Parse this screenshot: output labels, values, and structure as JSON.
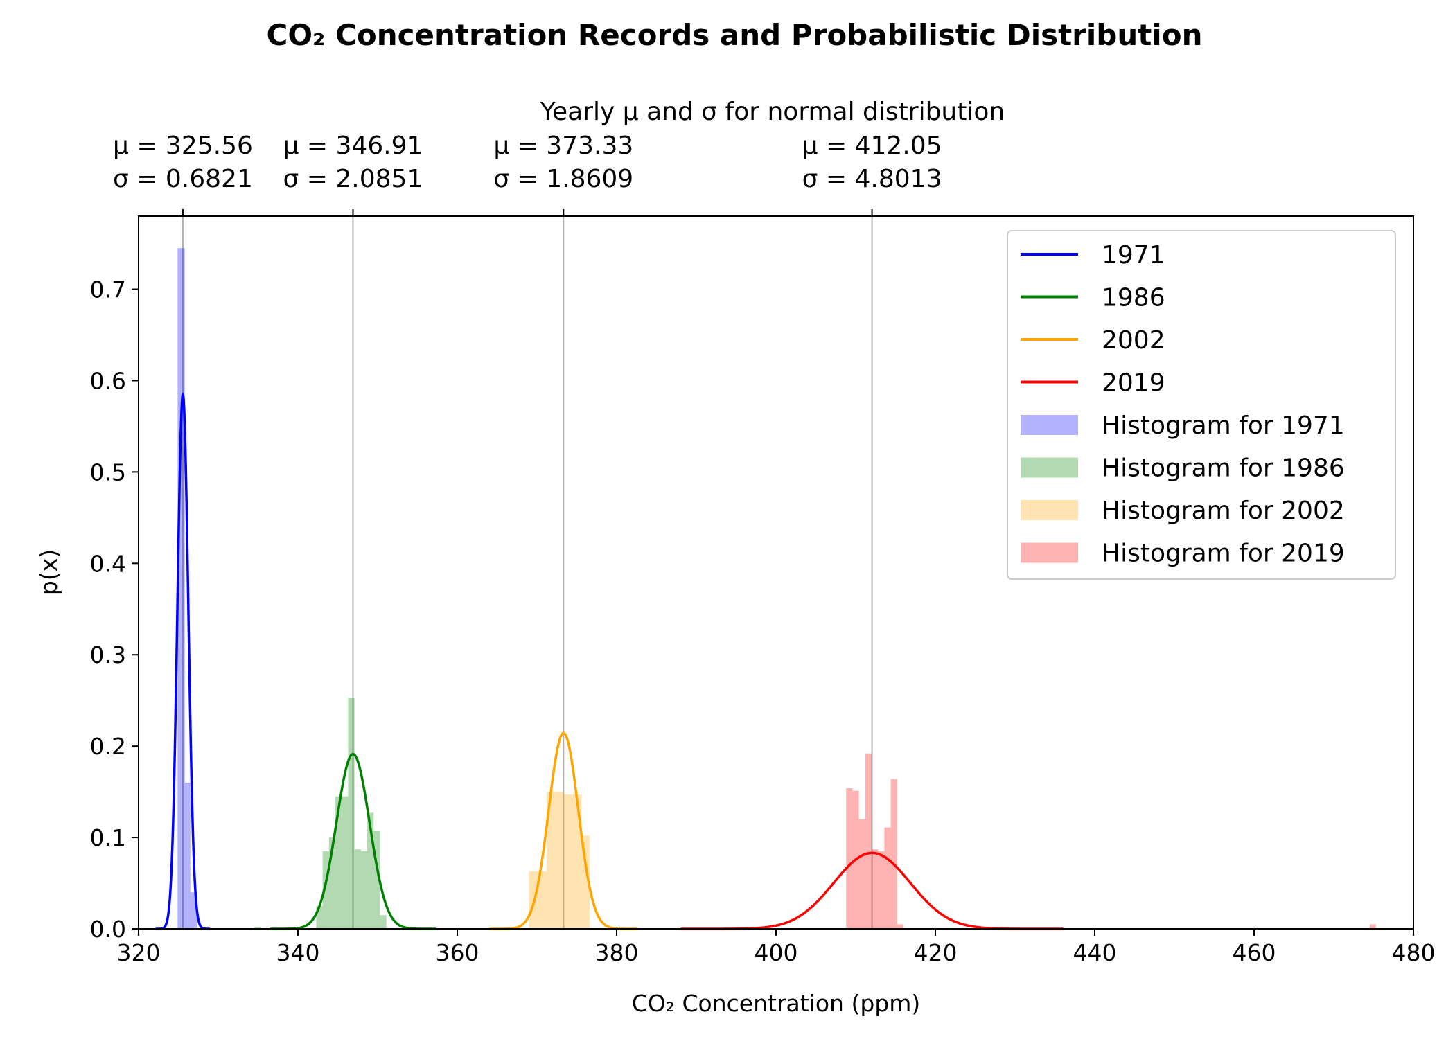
{
  "chart_data": {
    "type": "line",
    "title": "CO₂ Concentration Records and Probabilistic Distribution",
    "subtitle": "Yearly μ and σ for normal distribution",
    "xlabel": "CO₂ Concentration (ppm)",
    "ylabel": "p(x)",
    "xlim": [
      320,
      480
    ],
    "ylim": [
      0,
      0.78
    ],
    "x_ticks": [
      320,
      340,
      360,
      380,
      400,
      420,
      440,
      460,
      480
    ],
    "y_ticks": [
      0.0,
      0.1,
      0.2,
      0.3,
      0.4,
      0.5,
      0.6,
      0.7
    ],
    "y_tick_labels": [
      "0.0",
      "0.1",
      "0.2",
      "0.3",
      "0.4",
      "0.5",
      "0.6",
      "0.7"
    ],
    "grid": false,
    "legend_position": "top-right",
    "series": [
      {
        "name": "1971",
        "kind": "normal-curve",
        "mu": 325.56,
        "sigma": 0.6821,
        "color": "#0000ff",
        "mu_text": "μ = 325.56",
        "sigma_text": "σ = 0.6821"
      },
      {
        "name": "1986",
        "kind": "normal-curve",
        "mu": 346.91,
        "sigma": 2.0851,
        "color": "#008000",
        "mu_text": "μ = 346.91",
        "sigma_text": "σ = 2.0851"
      },
      {
        "name": "2002",
        "kind": "normal-curve",
        "mu": 373.33,
        "sigma": 1.8609,
        "color": "#ffa500",
        "mu_text": "μ = 373.33",
        "sigma_text": "σ = 1.8609"
      },
      {
        "name": "2019",
        "kind": "normal-curve",
        "mu": 412.05,
        "sigma": 4.8013,
        "color": "#ff0000",
        "mu_text": "μ = 412.05",
        "sigma_text": "σ = 4.8013"
      }
    ],
    "histograms": [
      {
        "name": "Histogram for 1971",
        "color": "#0000ff",
        "opacity": 0.3,
        "bins": [
          [
            324.9,
            325.8,
            0.745
          ],
          [
            325.8,
            326.5,
            0.16
          ],
          [
            326.5,
            327.3,
            0.04
          ]
        ]
      },
      {
        "name": "Histogram for 1986",
        "color": "#008000",
        "opacity": 0.3,
        "bins": [
          [
            334.5,
            335.3,
            0.002
          ],
          [
            342.3,
            343.1,
            0.025
          ],
          [
            343.1,
            343.9,
            0.085
          ],
          [
            343.9,
            344.7,
            0.1
          ],
          [
            344.7,
            345.5,
            0.145
          ],
          [
            345.5,
            346.3,
            0.145
          ],
          [
            346.3,
            347.1,
            0.253
          ],
          [
            347.1,
            347.9,
            0.087
          ],
          [
            347.9,
            348.7,
            0.085
          ],
          [
            348.7,
            349.5,
            0.127
          ],
          [
            349.5,
            350.3,
            0.107
          ],
          [
            350.3,
            351.1,
            0.015
          ]
        ]
      },
      {
        "name": "Histogram for 2002",
        "color": "#ffa500",
        "opacity": 0.3,
        "bins": [
          [
            369.0,
            371.2,
            0.063
          ],
          [
            371.2,
            373.4,
            0.15
          ],
          [
            373.4,
            375.6,
            0.147
          ],
          [
            375.6,
            376.6,
            0.102
          ]
        ]
      },
      {
        "name": "Histogram for 2019",
        "color": "#ff0000",
        "opacity": 0.3,
        "bins": [
          [
            408.8,
            409.6,
            0.154
          ],
          [
            409.6,
            410.4,
            0.151
          ],
          [
            410.4,
            411.2,
            0.12
          ],
          [
            411.2,
            412.0,
            0.192
          ],
          [
            412.0,
            412.8,
            0.087
          ],
          [
            412.8,
            413.6,
            0.085
          ],
          [
            413.6,
            414.4,
            0.111
          ],
          [
            414.4,
            415.2,
            0.164
          ],
          [
            415.2,
            416.0,
            0.005
          ],
          [
            474.5,
            475.3,
            0.005
          ]
        ]
      }
    ]
  }
}
